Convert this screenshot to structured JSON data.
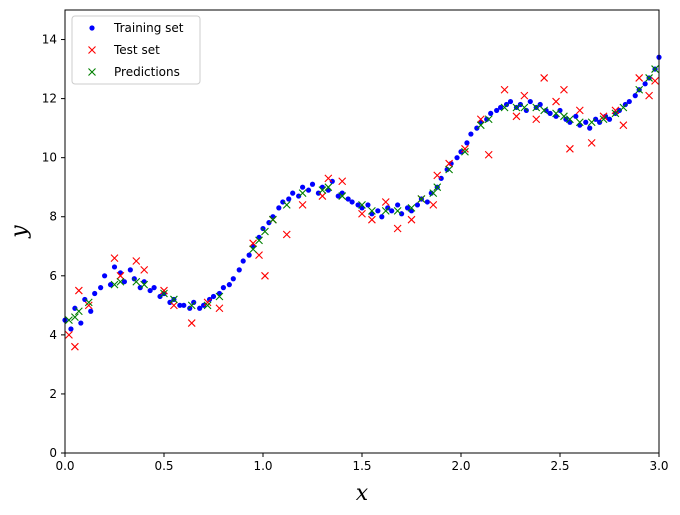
{
  "chart_data": {
    "type": "scatter",
    "title": "",
    "xlabel": "x",
    "ylabel": "y",
    "xlim": [
      0,
      3
    ],
    "ylim": [
      0,
      15
    ],
    "xticks": [
      0,
      0.5,
      1,
      1.5,
      2,
      2.5,
      3
    ],
    "xtick_labels": [
      "0.0",
      "0.5",
      "1.0",
      "1.5",
      "2.0",
      "2.5",
      "3.0"
    ],
    "yticks": [
      0,
      2,
      4,
      6,
      8,
      10,
      12,
      14
    ],
    "ytick_labels": [
      "0",
      "2",
      "4",
      "6",
      "8",
      "10",
      "12",
      "14"
    ],
    "grid": false,
    "legend_position": "top-left",
    "series": [
      {
        "name": "Training set",
        "marker": "dot",
        "color": "#0000ff",
        "points": [
          [
            0.0,
            4.5
          ],
          [
            0.03,
            4.2
          ],
          [
            0.05,
            4.9
          ],
          [
            0.08,
            4.4
          ],
          [
            0.1,
            5.2
          ],
          [
            0.13,
            4.8
          ],
          [
            0.15,
            5.4
          ],
          [
            0.18,
            5.6
          ],
          [
            0.2,
            6.0
          ],
          [
            0.23,
            5.7
          ],
          [
            0.25,
            6.3
          ],
          [
            0.28,
            6.1
          ],
          [
            0.3,
            5.8
          ],
          [
            0.33,
            6.2
          ],
          [
            0.35,
            5.9
          ],
          [
            0.38,
            5.6
          ],
          [
            0.4,
            5.8
          ],
          [
            0.43,
            5.5
          ],
          [
            0.45,
            5.6
          ],
          [
            0.48,
            5.3
          ],
          [
            0.5,
            5.4
          ],
          [
            0.53,
            5.1
          ],
          [
            0.55,
            5.2
          ],
          [
            0.58,
            5.0
          ],
          [
            0.6,
            5.0
          ],
          [
            0.63,
            4.9
          ],
          [
            0.65,
            5.1
          ],
          [
            0.68,
            4.9
          ],
          [
            0.7,
            5.0
          ],
          [
            0.73,
            5.2
          ],
          [
            0.75,
            5.3
          ],
          [
            0.78,
            5.4
          ],
          [
            0.8,
            5.6
          ],
          [
            0.83,
            5.7
          ],
          [
            0.85,
            5.9
          ],
          [
            0.88,
            6.2
          ],
          [
            0.9,
            6.5
          ],
          [
            0.93,
            6.7
          ],
          [
            0.95,
            7.0
          ],
          [
            0.98,
            7.3
          ],
          [
            1.0,
            7.6
          ],
          [
            1.03,
            7.8
          ],
          [
            1.05,
            8.0
          ],
          [
            1.08,
            8.3
          ],
          [
            1.1,
            8.5
          ],
          [
            1.13,
            8.6
          ],
          [
            1.15,
            8.8
          ],
          [
            1.18,
            8.7
          ],
          [
            1.2,
            9.0
          ],
          [
            1.23,
            8.9
          ],
          [
            1.25,
            9.1
          ],
          [
            1.28,
            8.8
          ],
          [
            1.3,
            9.0
          ],
          [
            1.33,
            8.9
          ],
          [
            1.35,
            9.2
          ],
          [
            1.38,
            8.7
          ],
          [
            1.4,
            8.8
          ],
          [
            1.43,
            8.6
          ],
          [
            1.45,
            8.5
          ],
          [
            1.48,
            8.4
          ],
          [
            1.5,
            8.3
          ],
          [
            1.53,
            8.4
          ],
          [
            1.55,
            8.1
          ],
          [
            1.58,
            8.2
          ],
          [
            1.6,
            8.0
          ],
          [
            1.63,
            8.3
          ],
          [
            1.65,
            8.2
          ],
          [
            1.68,
            8.4
          ],
          [
            1.7,
            8.1
          ],
          [
            1.73,
            8.3
          ],
          [
            1.75,
            8.2
          ],
          [
            1.78,
            8.4
          ],
          [
            1.8,
            8.6
          ],
          [
            1.83,
            8.5
          ],
          [
            1.85,
            8.8
          ],
          [
            1.88,
            9.0
          ],
          [
            1.9,
            9.3
          ],
          [
            1.93,
            9.6
          ],
          [
            1.95,
            9.8
          ],
          [
            1.98,
            10.0
          ],
          [
            2.0,
            10.2
          ],
          [
            2.03,
            10.5
          ],
          [
            2.05,
            10.8
          ],
          [
            2.08,
            11.0
          ],
          [
            2.1,
            11.2
          ],
          [
            2.13,
            11.3
          ],
          [
            2.15,
            11.5
          ],
          [
            2.18,
            11.6
          ],
          [
            2.2,
            11.7
          ],
          [
            2.23,
            11.8
          ],
          [
            2.25,
            11.9
          ],
          [
            2.28,
            11.7
          ],
          [
            2.3,
            11.8
          ],
          [
            2.33,
            11.6
          ],
          [
            2.35,
            11.9
          ],
          [
            2.38,
            11.7
          ],
          [
            2.4,
            11.8
          ],
          [
            2.43,
            11.6
          ],
          [
            2.45,
            11.5
          ],
          [
            2.48,
            11.4
          ],
          [
            2.5,
            11.6
          ],
          [
            2.53,
            11.3
          ],
          [
            2.55,
            11.2
          ],
          [
            2.58,
            11.4
          ],
          [
            2.6,
            11.1
          ],
          [
            2.63,
            11.2
          ],
          [
            2.65,
            11.0
          ],
          [
            2.68,
            11.3
          ],
          [
            2.7,
            11.2
          ],
          [
            2.73,
            11.4
          ],
          [
            2.75,
            11.3
          ],
          [
            2.78,
            11.5
          ],
          [
            2.8,
            11.6
          ],
          [
            2.83,
            11.8
          ],
          [
            2.85,
            11.9
          ],
          [
            2.88,
            12.1
          ],
          [
            2.9,
            12.3
          ],
          [
            2.93,
            12.5
          ],
          [
            2.95,
            12.7
          ],
          [
            2.98,
            13.0
          ],
          [
            3.0,
            13.4
          ]
        ]
      },
      {
        "name": "Test set",
        "marker": "x",
        "color": "#ff0000",
        "points": [
          [
            0.02,
            4.0
          ],
          [
            0.05,
            3.6
          ],
          [
            0.07,
            5.5
          ],
          [
            0.12,
            5.0
          ],
          [
            0.25,
            6.6
          ],
          [
            0.28,
            6.0
          ],
          [
            0.36,
            6.5
          ],
          [
            0.4,
            6.2
          ],
          [
            0.5,
            5.5
          ],
          [
            0.55,
            5.0
          ],
          [
            0.64,
            4.4
          ],
          [
            0.72,
            5.1
          ],
          [
            0.78,
            4.9
          ],
          [
            0.95,
            7.1
          ],
          [
            0.98,
            6.7
          ],
          [
            1.01,
            6.0
          ],
          [
            1.05,
            7.9
          ],
          [
            1.12,
            7.4
          ],
          [
            1.2,
            8.4
          ],
          [
            1.3,
            8.7
          ],
          [
            1.33,
            9.3
          ],
          [
            1.4,
            9.2
          ],
          [
            1.5,
            8.1
          ],
          [
            1.55,
            7.9
          ],
          [
            1.62,
            8.5
          ],
          [
            1.68,
            7.6
          ],
          [
            1.75,
            7.9
          ],
          [
            1.8,
            8.6
          ],
          [
            1.86,
            8.4
          ],
          [
            1.88,
            9.4
          ],
          [
            1.94,
            9.8
          ],
          [
            2.02,
            10.3
          ],
          [
            2.1,
            11.3
          ],
          [
            2.14,
            10.1
          ],
          [
            2.22,
            12.3
          ],
          [
            2.28,
            11.4
          ],
          [
            2.32,
            12.1
          ],
          [
            2.38,
            11.3
          ],
          [
            2.42,
            12.7
          ],
          [
            2.48,
            11.9
          ],
          [
            2.52,
            12.3
          ],
          [
            2.55,
            10.3
          ],
          [
            2.6,
            11.6
          ],
          [
            2.66,
            10.5
          ],
          [
            2.72,
            11.4
          ],
          [
            2.78,
            11.6
          ],
          [
            2.82,
            11.1
          ],
          [
            2.9,
            12.7
          ],
          [
            2.95,
            12.1
          ],
          [
            2.98,
            12.6
          ]
        ]
      },
      {
        "name": "Predictions",
        "marker": "x",
        "color": "#008000",
        "points": [
          [
            0.02,
            4.5
          ],
          [
            0.05,
            4.6
          ],
          [
            0.07,
            4.8
          ],
          [
            0.12,
            5.1
          ],
          [
            0.25,
            5.7
          ],
          [
            0.28,
            5.8
          ],
          [
            0.36,
            5.8
          ],
          [
            0.4,
            5.7
          ],
          [
            0.5,
            5.4
          ],
          [
            0.55,
            5.2
          ],
          [
            0.64,
            5.0
          ],
          [
            0.72,
            5.0
          ],
          [
            0.78,
            5.3
          ],
          [
            0.95,
            6.9
          ],
          [
            0.98,
            7.2
          ],
          [
            1.01,
            7.5
          ],
          [
            1.05,
            7.9
          ],
          [
            1.12,
            8.4
          ],
          [
            1.2,
            8.8
          ],
          [
            1.3,
            8.9
          ],
          [
            1.33,
            9.0
          ],
          [
            1.4,
            8.7
          ],
          [
            1.5,
            8.4
          ],
          [
            1.55,
            8.2
          ],
          [
            1.62,
            8.2
          ],
          [
            1.68,
            8.2
          ],
          [
            1.75,
            8.3
          ],
          [
            1.8,
            8.6
          ],
          [
            1.86,
            8.8
          ],
          [
            1.88,
            9.0
          ],
          [
            1.94,
            9.6
          ],
          [
            2.02,
            10.2
          ],
          [
            2.1,
            11.1
          ],
          [
            2.14,
            11.3
          ],
          [
            2.22,
            11.7
          ],
          [
            2.28,
            11.7
          ],
          [
            2.32,
            11.7
          ],
          [
            2.38,
            11.7
          ],
          [
            2.42,
            11.6
          ],
          [
            2.48,
            11.5
          ],
          [
            2.52,
            11.4
          ],
          [
            2.55,
            11.3
          ],
          [
            2.6,
            11.2
          ],
          [
            2.66,
            11.2
          ],
          [
            2.72,
            11.3
          ],
          [
            2.78,
            11.5
          ],
          [
            2.82,
            11.7
          ],
          [
            2.9,
            12.3
          ],
          [
            2.95,
            12.7
          ],
          [
            2.98,
            13.0
          ]
        ]
      }
    ]
  }
}
